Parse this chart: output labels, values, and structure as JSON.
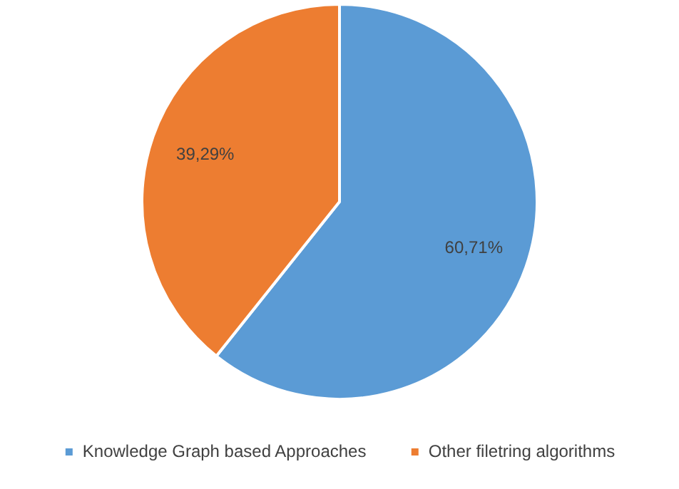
{
  "chart_data": {
    "type": "pie",
    "categories": [
      "Knowledge Graph based Approaches",
      "Other filetring algorithms"
    ],
    "values": [
      60.71,
      39.29
    ],
    "colors": [
      "#5b9bd5",
      "#ed7d31"
    ],
    "value_labels": [
      "60,71%",
      "39,29%"
    ],
    "legend": "bottom"
  }
}
